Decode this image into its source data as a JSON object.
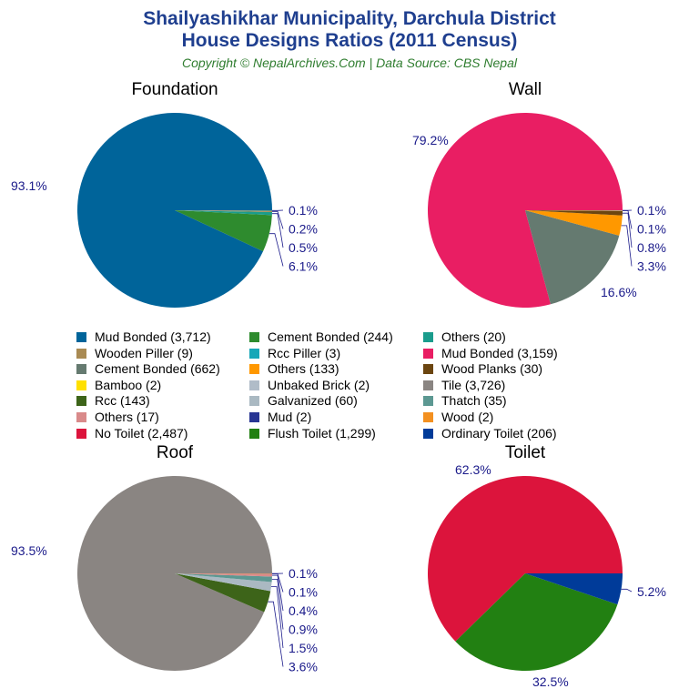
{
  "title_line1": "Shailyashikhar Municipality, Darchula District",
  "title_line2": "House Designs Ratios (2011 Census)",
  "subtitle": "Copyright © NepalArchives.Com | Data Source: CBS Nepal",
  "chart_data": [
    {
      "type": "pie",
      "title": "Foundation",
      "slices": [
        {
          "label": "Mud Bonded",
          "value": 3712,
          "pct": "93.1%",
          "color": "#00649a"
        },
        {
          "label": "Cement Bonded",
          "value": 244,
          "pct": "6.1%",
          "color": "#2e8b2e"
        },
        {
          "label": "Others",
          "value": 20,
          "pct": "0.5%",
          "color": "#1a9c8c"
        },
        {
          "label": "Wooden Piller",
          "value": 9,
          "pct": "0.2%",
          "color": "#a98a53"
        },
        {
          "label": "Rcc Piller",
          "value": 3,
          "pct": "0.1%",
          "color": "#17a7b8"
        }
      ]
    },
    {
      "type": "pie",
      "title": "Wall",
      "slices": [
        {
          "label": "Mud Bonded",
          "value": 3159,
          "pct": "79.2%",
          "color": "#e91e63"
        },
        {
          "label": "Cement Bonded",
          "value": 662,
          "pct": "16.6%",
          "color": "#657a70"
        },
        {
          "label": "Others",
          "value": 133,
          "pct": "3.3%",
          "color": "#ff9800"
        },
        {
          "label": "Wood Planks",
          "value": 30,
          "pct": "0.8%",
          "color": "#6b4510"
        },
        {
          "label": "Bamboo",
          "value": 2,
          "pct": "0.1%",
          "color": "#ffe000"
        },
        {
          "label": "Unbaked Brick",
          "value": 2,
          "pct": "0.1%",
          "color": "#b0bcc8"
        }
      ]
    },
    {
      "type": "pie",
      "title": "Roof",
      "slices": [
        {
          "label": "Tile",
          "value": 3726,
          "pct": "93.5%",
          "color": "#8a8582"
        },
        {
          "label": "Rcc",
          "value": 143,
          "pct": "3.6%",
          "color": "#3d6419"
        },
        {
          "label": "Galvanized",
          "value": 60,
          "pct": "1.5%",
          "color": "#aab9c2"
        },
        {
          "label": "Thatch",
          "value": 35,
          "pct": "0.9%",
          "color": "#5c9892"
        },
        {
          "label": "Others",
          "value": 17,
          "pct": "0.4%",
          "color": "#d98a8a"
        },
        {
          "label": "Mud",
          "value": 2,
          "pct": "0.1%",
          "color": "#283593"
        },
        {
          "label": "Wood",
          "value": 2,
          "pct": "0.1%",
          "color": "#f39020"
        }
      ]
    },
    {
      "type": "pie",
      "title": "Toilet",
      "slices": [
        {
          "label": "No Toilet",
          "value": 2487,
          "pct": "62.3%",
          "color": "#dc143c"
        },
        {
          "label": "Flush Toilet",
          "value": 1299,
          "pct": "32.5%",
          "color": "#228012"
        },
        {
          "label": "Ordinary Toilet",
          "value": 206,
          "pct": "5.2%",
          "color": "#003b99"
        }
      ]
    }
  ],
  "legend": [
    {
      "text": "Mud Bonded (3,712)",
      "color": "#00649a"
    },
    {
      "text": "Cement Bonded (244)",
      "color": "#2e8b2e"
    },
    {
      "text": "Others (20)",
      "color": "#1a9c8c"
    },
    {
      "text": "Wooden Piller (9)",
      "color": "#a98a53"
    },
    {
      "text": "Rcc Piller (3)",
      "color": "#17a7b8"
    },
    {
      "text": "Mud Bonded (3,159)",
      "color": "#e91e63"
    },
    {
      "text": "Cement Bonded (662)",
      "color": "#657a70"
    },
    {
      "text": "Others (133)",
      "color": "#ff9800"
    },
    {
      "text": "Wood Planks (30)",
      "color": "#6b4510"
    },
    {
      "text": "Bamboo (2)",
      "color": "#ffe000"
    },
    {
      "text": "Unbaked Brick (2)",
      "color": "#b0bcc8"
    },
    {
      "text": "Tile (3,726)",
      "color": "#8a8582"
    },
    {
      "text": "Rcc (143)",
      "color": "#3d6419"
    },
    {
      "text": "Galvanized (60)",
      "color": "#aab9c2"
    },
    {
      "text": "Thatch (35)",
      "color": "#5c9892"
    },
    {
      "text": "Others (17)",
      "color": "#d98a8a"
    },
    {
      "text": "Mud (2)",
      "color": "#283593"
    },
    {
      "text": "Wood (2)",
      "color": "#f39020"
    },
    {
      "text": "No Toilet (2,487)",
      "color": "#dc143c"
    },
    {
      "text": "Flush Toilet (1,299)",
      "color": "#228012"
    },
    {
      "text": "Ordinary Toilet (206)",
      "color": "#003b99"
    }
  ]
}
